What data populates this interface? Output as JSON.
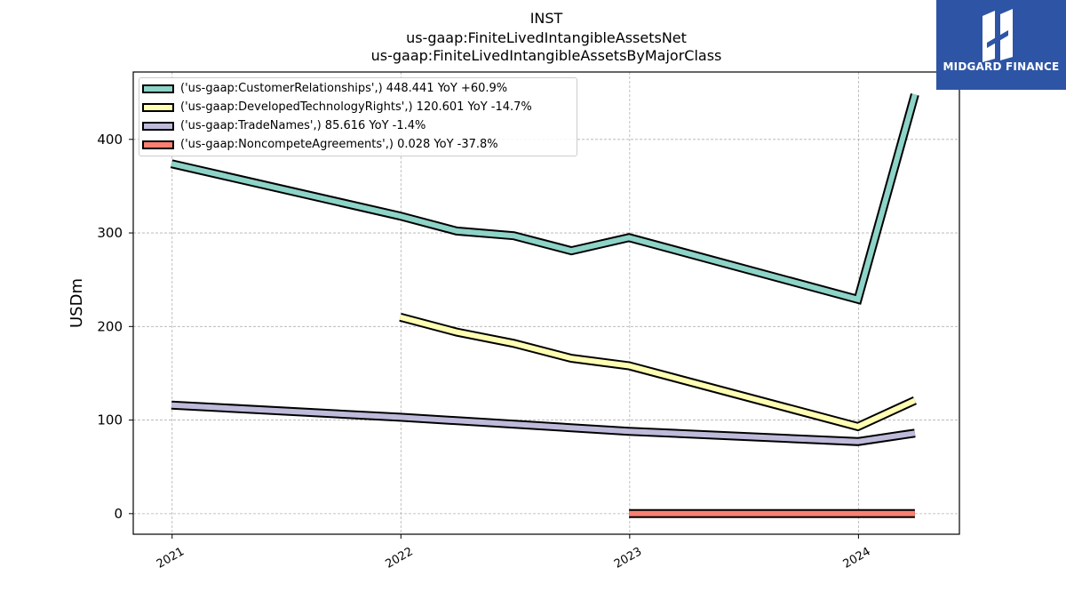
{
  "header": {
    "title_line1": "INST",
    "title_line2": "us-gaap:FiniteLivedIntangibleAssetsNet",
    "title_line3": "us-gaap:FiniteLivedIntangibleAssetsByMajorClass"
  },
  "logo": {
    "text": "MIDGARD FINANCE",
    "bg_color": "#2e55a5",
    "icon": "midgard-logo-icon"
  },
  "legend": {
    "items": [
      {
        "label": "('us-gaap:CustomerRelationships',) 448.441 YoY +60.9%",
        "color": "#8dd3c7"
      },
      {
        "label": "('us-gaap:DevelopedTechnologyRights',) 120.601 YoY -14.7%",
        "color": "#ffffb3"
      },
      {
        "label": "('us-gaap:TradeNames',) 85.616 YoY -1.4%",
        "color": "#bebada"
      },
      {
        "label": "('us-gaap:NoncompeteAgreements',) 0.028 YoY -37.8%",
        "color": "#fb8072"
      }
    ]
  },
  "chart_data": {
    "type": "line",
    "title": "INST\nus-gaap:FiniteLivedIntangibleAssetsNet\nus-gaap:FiniteLivedIntangibleAssetsByMajorClass",
    "xlabel": "",
    "ylabel": "USDm",
    "x_ticks": [
      "2021",
      "2022",
      "2023",
      "2024"
    ],
    "y_ticks": [
      0,
      100,
      200,
      300,
      400
    ],
    "xlim": [
      "2020-10-31",
      "2024-06-10"
    ],
    "ylim": [
      -22,
      472
    ],
    "grid": true,
    "legend_position": "top-left",
    "series": [
      {
        "name": "('us-gaap:CustomerRelationships',) 448.441 YoY +60.9%",
        "color": "#8dd3c7",
        "points": [
          {
            "x": "2020-12-31",
            "y": 374
          },
          {
            "x": "2021-12-31",
            "y": 318
          },
          {
            "x": "2022-03-31",
            "y": 302
          },
          {
            "x": "2022-06-30",
            "y": 297
          },
          {
            "x": "2022-09-30",
            "y": 281
          },
          {
            "x": "2022-12-31",
            "y": 295
          },
          {
            "x": "2023-12-31",
            "y": 229
          },
          {
            "x": "2024-03-31",
            "y": 448
          }
        ]
      },
      {
        "name": "('us-gaap:DevelopedTechnologyRights',) 120.601 YoY -14.7%",
        "color": "#ffffb3",
        "points": [
          {
            "x": "2021-12-31",
            "y": 210
          },
          {
            "x": "2022-03-31",
            "y": 194
          },
          {
            "x": "2022-06-30",
            "y": 182
          },
          {
            "x": "2022-09-30",
            "y": 166
          },
          {
            "x": "2022-12-31",
            "y": 158
          },
          {
            "x": "2023-12-31",
            "y": 93
          },
          {
            "x": "2024-03-31",
            "y": 121
          }
        ]
      },
      {
        "name": "('us-gaap:TradeNames',) 85.616 YoY -1.4%",
        "color": "#bebada",
        "points": [
          {
            "x": "2020-12-31",
            "y": 116
          },
          {
            "x": "2021-12-31",
            "y": 103
          },
          {
            "x": "2022-12-31",
            "y": 88
          },
          {
            "x": "2023-12-31",
            "y": 77
          },
          {
            "x": "2024-03-31",
            "y": 86
          }
        ]
      },
      {
        "name": "('us-gaap:NoncompeteAgreements',) 0.028 YoY -37.8%",
        "color": "#fb8072",
        "points": [
          {
            "x": "2022-12-31",
            "y": 0.05
          },
          {
            "x": "2023-12-31",
            "y": 0.045
          },
          {
            "x": "2024-03-31",
            "y": 0.028
          }
        ]
      }
    ]
  }
}
